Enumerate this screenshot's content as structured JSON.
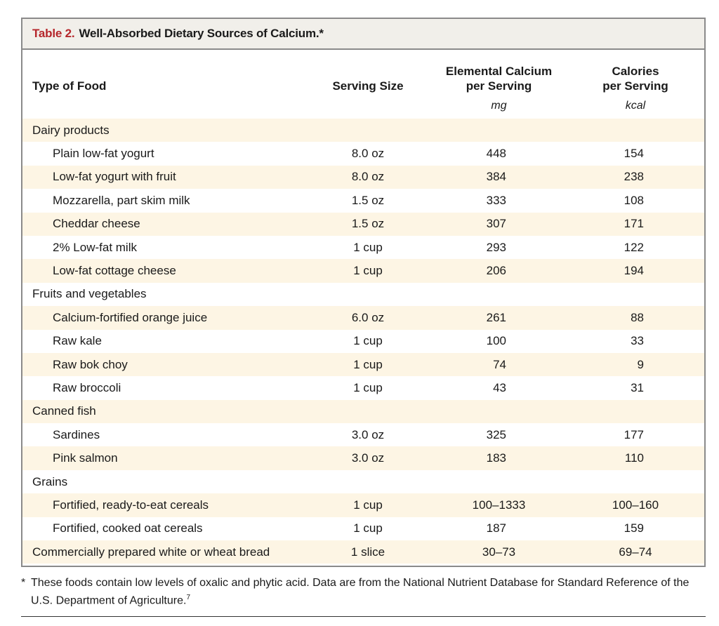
{
  "caption": {
    "label": "Table 2.",
    "title": "Well-Absorbed Dietary Sources of Calcium.*"
  },
  "headers": {
    "type": "Type of Food",
    "serving": "Serving Size",
    "calcium_line1": "Elemental Calcium",
    "calcium_line2": "per Serving",
    "calories_line1": "Calories",
    "calories_line2": "per Serving",
    "calcium_unit": "mg",
    "calories_unit": "kcal"
  },
  "rows": [
    {
      "kind": "group",
      "name": "Dairy products"
    },
    {
      "kind": "item",
      "name": "Plain low-fat yogurt",
      "serving": "8.0 oz",
      "calcium": "448",
      "calories": "154"
    },
    {
      "kind": "item",
      "name": "Low-fat yogurt with fruit",
      "serving": "8.0 oz",
      "calcium": "384",
      "calories": "238"
    },
    {
      "kind": "item",
      "name": "Mozzarella, part skim milk",
      "serving": "1.5 oz",
      "calcium": "333",
      "calories": "108"
    },
    {
      "kind": "item",
      "name": "Cheddar cheese",
      "serving": "1.5 oz",
      "calcium": "307",
      "calories": "171"
    },
    {
      "kind": "item",
      "name": "2% Low-fat milk",
      "serving": "1 cup",
      "calcium": "293",
      "calories": "122"
    },
    {
      "kind": "item",
      "name": "Low-fat cottage cheese",
      "serving": "1 cup",
      "calcium": "206",
      "calories": "194"
    },
    {
      "kind": "group",
      "name": "Fruits and vegetables"
    },
    {
      "kind": "item",
      "name": "Calcium-fortified orange juice",
      "serving": "6.0 oz",
      "calcium": "261",
      "calories": "88"
    },
    {
      "kind": "item",
      "name": "Raw kale",
      "serving": "1 cup",
      "calcium": "100",
      "calories": "33"
    },
    {
      "kind": "item",
      "name": "Raw bok choy",
      "serving": "1 cup",
      "calcium": "74",
      "calories": "9"
    },
    {
      "kind": "item",
      "name": "Raw broccoli",
      "serving": "1 cup",
      "calcium": "43",
      "calories": "31"
    },
    {
      "kind": "group",
      "name": "Canned fish"
    },
    {
      "kind": "item",
      "name": "Sardines",
      "serving": "3.0 oz",
      "calcium": "325",
      "calories": "177"
    },
    {
      "kind": "item",
      "name": "Pink salmon",
      "serving": "3.0 oz",
      "calcium": "183",
      "calories": "110"
    },
    {
      "kind": "group",
      "name": "Grains"
    },
    {
      "kind": "item",
      "name": "Fortified, ready-to-eat cereals",
      "serving": "1 cup",
      "calcium": "100–1333",
      "calories": "100–160",
      "range": true
    },
    {
      "kind": "item",
      "name": "Fortified, cooked oat cereals",
      "serving": "1 cup",
      "calcium": "187",
      "calories": "159"
    },
    {
      "kind": "top",
      "name": "Commercially prepared white or wheat bread",
      "serving": "1 slice",
      "calcium": "30–73",
      "calories": "69–74",
      "range": true
    }
  ],
  "footnote": {
    "mark": "*",
    "text": "These foods contain low levels of oxalic and phytic acid. Data are from the National Nutrient Database for Standard Reference of the U.S. Department of Agriculture.",
    "ref": "7"
  }
}
